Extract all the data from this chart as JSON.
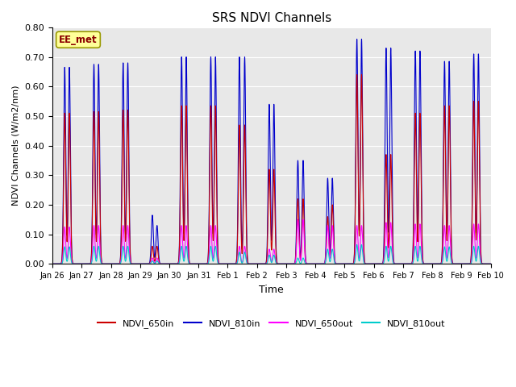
{
  "title": "SRS NDVI Channels",
  "ylabel": "NDVI Channels (W/m2/nm)",
  "xlabel": "Time",
  "ylim": [
    0,
    0.8
  ],
  "yticks": [
    0.0,
    0.1,
    0.2,
    0.3,
    0.4,
    0.5,
    0.6,
    0.7,
    0.8
  ],
  "colors": {
    "NDVI_650in": "#cc0000",
    "NDVI_810in": "#0000cc",
    "NDVI_650out": "#ff00ff",
    "NDVI_810out": "#00cccc"
  },
  "annotation_text": "EE_met",
  "annotation_color": "#8b0000",
  "annotation_bg": "#ffff99",
  "background_color": "#e8e8e8",
  "xtick_labels": [
    "Jan 26",
    "Jan 27",
    "Jan 28",
    "Jan 29",
    "Jan 30",
    "Jan 31",
    "Feb 1",
    "Feb 2",
    "Feb 3",
    "Feb 4",
    "Feb 5",
    "Feb 6",
    "Feb 7",
    "Feb 8",
    "Feb 9",
    "Feb 10"
  ],
  "peaks": [
    {
      "day": 0.42,
      "in650": 0.51,
      "in810": 0.665,
      "out650": 0.125,
      "out810": 0.058
    },
    {
      "day": 0.58,
      "in650": 0.51,
      "in810": 0.665,
      "out650": 0.125,
      "out810": 0.058
    },
    {
      "day": 1.42,
      "in650": 0.515,
      "in810": 0.675,
      "out650": 0.13,
      "out810": 0.06
    },
    {
      "day": 1.58,
      "in650": 0.515,
      "in810": 0.675,
      "out650": 0.13,
      "out810": 0.06
    },
    {
      "day": 2.42,
      "in650": 0.52,
      "in810": 0.68,
      "out650": 0.13,
      "out810": 0.06
    },
    {
      "day": 2.58,
      "in650": 0.52,
      "in810": 0.68,
      "out650": 0.13,
      "out810": 0.06
    },
    {
      "day": 3.42,
      "in650": 0.06,
      "in810": 0.165,
      "out650": 0.02,
      "out810": 0.01
    },
    {
      "day": 3.58,
      "in650": 0.06,
      "in810": 0.13,
      "out650": 0.02,
      "out810": 0.01
    },
    {
      "day": 4.42,
      "in650": 0.535,
      "in810": 0.7,
      "out650": 0.13,
      "out810": 0.06
    },
    {
      "day": 4.58,
      "in650": 0.535,
      "in810": 0.7,
      "out650": 0.13,
      "out810": 0.06
    },
    {
      "day": 5.42,
      "in650": 0.535,
      "in810": 0.7,
      "out650": 0.13,
      "out810": 0.06
    },
    {
      "day": 5.58,
      "in650": 0.535,
      "in810": 0.7,
      "out650": 0.13,
      "out810": 0.06
    },
    {
      "day": 6.4,
      "in650": 0.47,
      "in810": 0.7,
      "out650": 0.06,
      "out810": 0.04
    },
    {
      "day": 6.58,
      "in650": 0.47,
      "in810": 0.7,
      "out650": 0.06,
      "out810": 0.04
    },
    {
      "day": 7.42,
      "in650": 0.32,
      "in810": 0.54,
      "out650": 0.05,
      "out810": 0.03
    },
    {
      "day": 7.58,
      "in650": 0.32,
      "in810": 0.54,
      "out650": 0.05,
      "out810": 0.03
    },
    {
      "day": 8.4,
      "in650": 0.22,
      "in810": 0.35,
      "out650": 0.15,
      "out810": 0.02
    },
    {
      "day": 8.58,
      "in650": 0.22,
      "in810": 0.35,
      "out650": 0.15,
      "out810": 0.02
    },
    {
      "day": 9.42,
      "in650": 0.16,
      "in810": 0.29,
      "out650": 0.13,
      "out810": 0.05
    },
    {
      "day": 9.58,
      "in650": 0.2,
      "in810": 0.29,
      "out650": 0.13,
      "out810": 0.05
    },
    {
      "day": 10.42,
      "in650": 0.64,
      "in810": 0.76,
      "out650": 0.13,
      "out810": 0.065
    },
    {
      "day": 10.58,
      "in650": 0.64,
      "in810": 0.76,
      "out650": 0.13,
      "out810": 0.065
    },
    {
      "day": 11.42,
      "in650": 0.37,
      "in810": 0.73,
      "out650": 0.14,
      "out810": 0.06
    },
    {
      "day": 11.58,
      "in650": 0.37,
      "in810": 0.73,
      "out650": 0.14,
      "out810": 0.06
    },
    {
      "day": 12.42,
      "in650": 0.51,
      "in810": 0.72,
      "out650": 0.135,
      "out810": 0.06
    },
    {
      "day": 12.58,
      "in650": 0.51,
      "in810": 0.72,
      "out650": 0.135,
      "out810": 0.06
    },
    {
      "day": 13.42,
      "in650": 0.535,
      "in810": 0.685,
      "out650": 0.13,
      "out810": 0.058
    },
    {
      "day": 13.58,
      "in650": 0.535,
      "in810": 0.685,
      "out650": 0.13,
      "out810": 0.058
    },
    {
      "day": 14.42,
      "in650": 0.55,
      "in810": 0.71,
      "out650": 0.135,
      "out810": 0.06
    },
    {
      "day": 14.58,
      "in650": 0.55,
      "in810": 0.71,
      "out650": 0.135,
      "out810": 0.06
    }
  ]
}
